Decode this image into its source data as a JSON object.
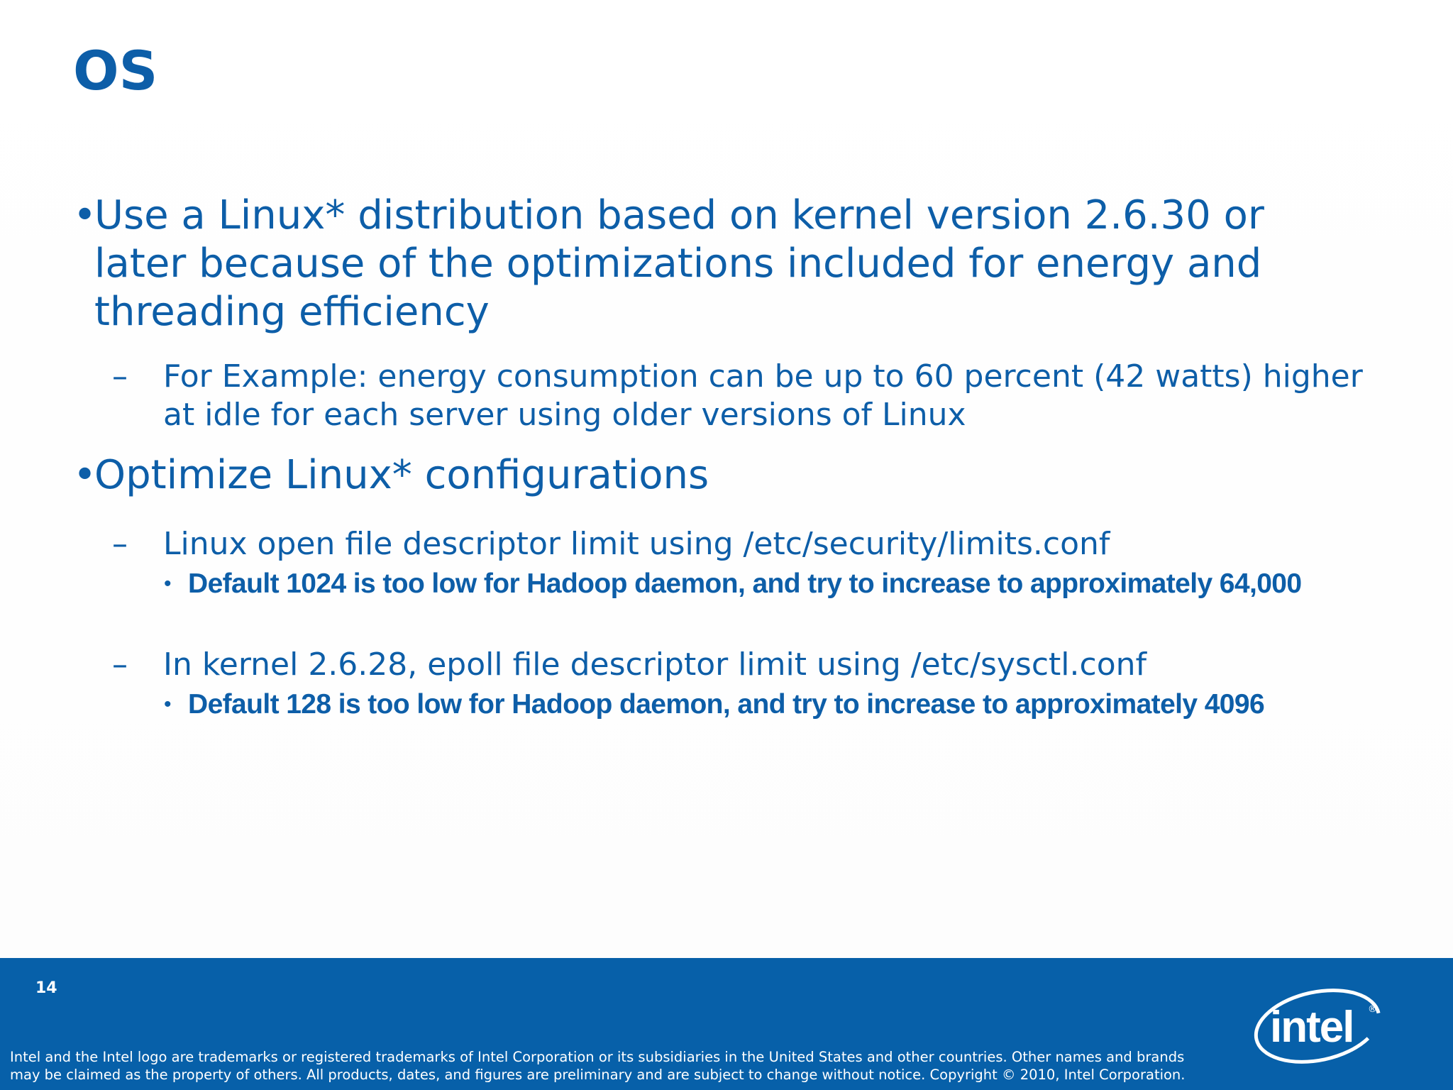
{
  "slide": {
    "title": "OS",
    "bullets": [
      {
        "marker": "•",
        "text": "Use a Linux* distribution based on kernel version 2.6.30 or later because of the optimizations included for energy and threading efficiency",
        "sub": [
          {
            "marker": "–",
            "text": "For Example: energy consumption can be up to 60 percent (42 watts) higher at idle for each server using older versions of Linux",
            "sub": []
          }
        ]
      },
      {
        "marker": "•",
        "text": "Optimize Linux* configurations",
        "sub": [
          {
            "marker": "–",
            "text": "Linux open file descriptor limit using /etc/security/limits.conf",
            "sub": [
              {
                "marker": "•",
                "text": "Default 1024 is too low for Hadoop daemon, and try to increase to approximately 64,000"
              }
            ]
          },
          {
            "marker": "–",
            "text": "In kernel 2.6.28, epoll file descriptor limit using /etc/sysctl.conf",
            "sub": [
              {
                "marker": "•",
                "text": "Default 128 is too low for Hadoop daemon, and try to increase to approximately 4096"
              }
            ]
          }
        ]
      }
    ]
  },
  "footer": {
    "page_number": "14",
    "legal_line1": "Intel and the Intel logo are trademarks or registered trademarks of Intel Corporation or its subsidiaries in the United States and other countries.  Other names and brands",
    "legal_line2": "may be claimed as the property of others.  All products, dates, and figures are preliminary and are subject to change without notice.  Copyright © 2010, Intel Corporation.",
    "logo_text": "intel",
    "logo_mark": "®"
  },
  "colors": {
    "text_blue": "#0d5ea8",
    "footer_blue": "#0760a9",
    "white": "#ffffff"
  }
}
